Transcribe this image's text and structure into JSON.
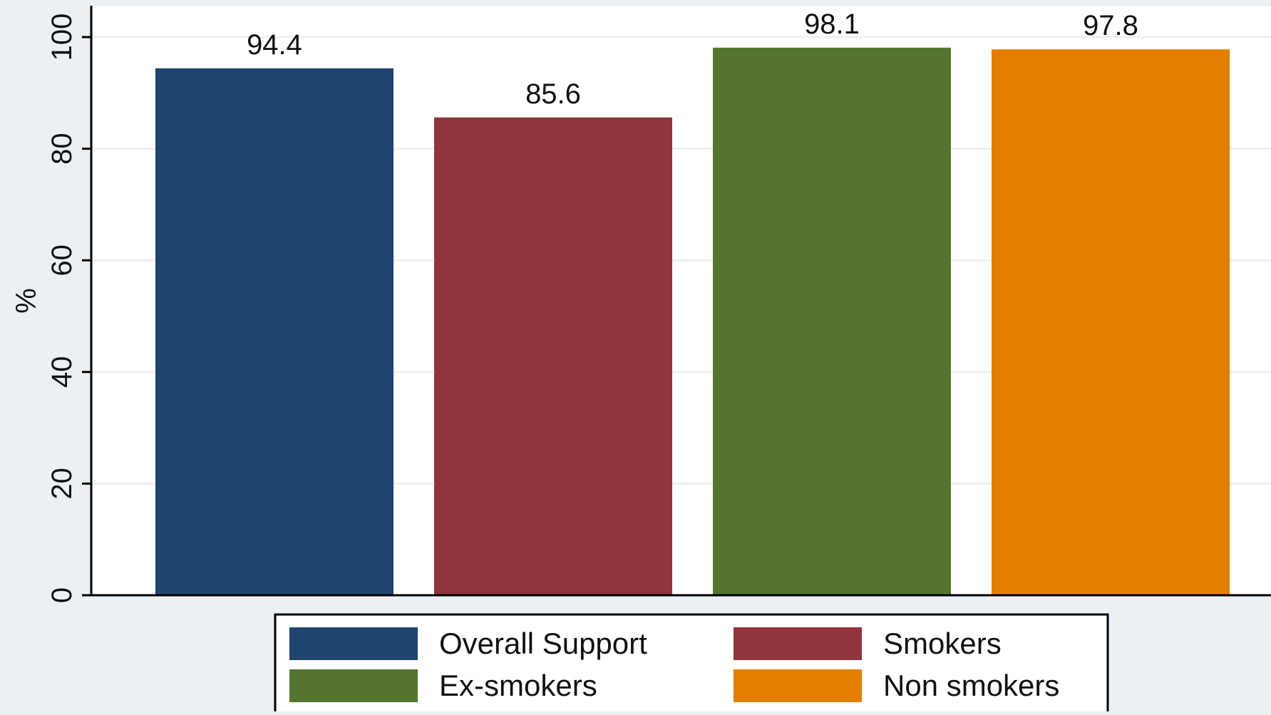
{
  "chart_data": {
    "type": "bar",
    "title": "",
    "xlabel": "",
    "ylabel": "%",
    "ylim": [
      0,
      100
    ],
    "yticks": [
      0,
      20,
      40,
      60,
      80,
      100
    ],
    "grid": true,
    "legend_position": "bottom",
    "series": [
      {
        "name": "Overall Support",
        "value": 94.4,
        "label": "94.4",
        "color": "#1f456e"
      },
      {
        "name": "Smokers",
        "value": 85.6,
        "label": "85.6",
        "color": "#90353b"
      },
      {
        "name": "Ex-smokers",
        "value": 98.1,
        "label": "98.1",
        "color": "#55752f"
      },
      {
        "name": "Non smokers",
        "value": 97.8,
        "label": "97.8",
        "color": "#e37e00"
      }
    ],
    "colors": {
      "background": "#eaf0f3",
      "plot_area": "#ffffff",
      "gridline": "#eaf0f3",
      "axis": "#000000"
    }
  }
}
